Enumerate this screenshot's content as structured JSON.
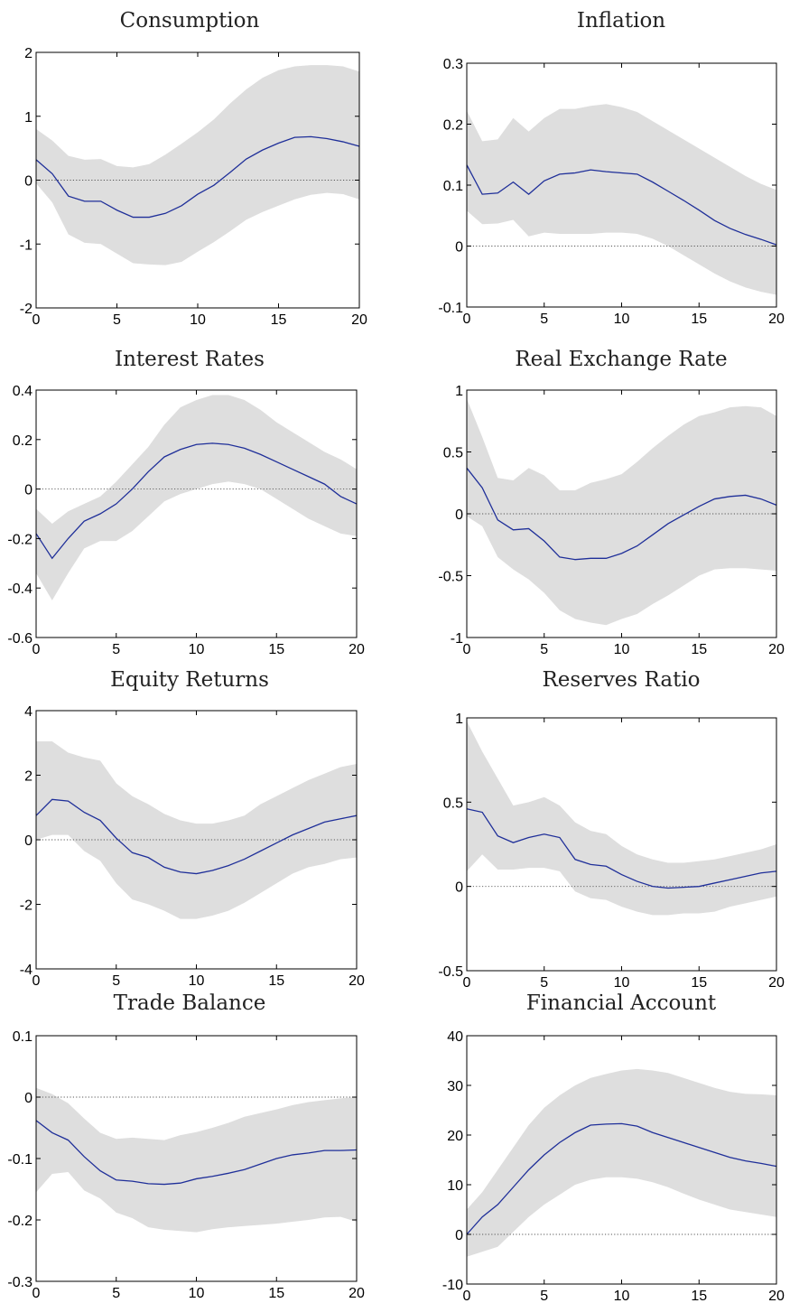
{
  "chart_data": [
    {
      "type": "area",
      "title": "Consumption",
      "xlim": [
        0,
        20
      ],
      "ylim": [
        -2,
        2
      ],
      "xticks": [
        0,
        5,
        10,
        15,
        20
      ],
      "yticks": [
        -2,
        -1,
        0,
        1,
        2
      ],
      "x": [
        0,
        1,
        2,
        3,
        4,
        5,
        6,
        7,
        8,
        9,
        10,
        11,
        12,
        13,
        14,
        15,
        16,
        17,
        18,
        19,
        20
      ],
      "series": [
        {
          "role": "median",
          "values": [
            0.32,
            0.1,
            -0.25,
            -0.33,
            -0.33,
            -0.47,
            -0.58,
            -0.58,
            -0.52,
            -0.4,
            -0.22,
            -0.08,
            0.12,
            0.33,
            0.47,
            0.58,
            0.67,
            0.68,
            0.65,
            0.6,
            0.53
          ]
        },
        {
          "role": "upper",
          "values": [
            0.8,
            0.62,
            0.38,
            0.32,
            0.33,
            0.22,
            0.2,
            0.25,
            0.4,
            0.57,
            0.75,
            0.95,
            1.2,
            1.42,
            1.6,
            1.72,
            1.78,
            1.8,
            1.8,
            1.78,
            1.7
          ]
        },
        {
          "role": "lower",
          "values": [
            -0.05,
            -0.35,
            -0.85,
            -0.98,
            -1.0,
            -1.15,
            -1.3,
            -1.32,
            -1.33,
            -1.28,
            -1.12,
            -0.97,
            -0.8,
            -0.62,
            -0.5,
            -0.4,
            -0.3,
            -0.23,
            -0.2,
            -0.22,
            -0.3
          ]
        }
      ],
      "colors": {
        "median": "#1f2f99",
        "band": "#dedede",
        "zero": "#555555"
      }
    },
    {
      "type": "area",
      "title": "Inflation",
      "xlim": [
        0,
        20
      ],
      "ylim": [
        -0.1,
        0.3
      ],
      "xticks": [
        0,
        5,
        10,
        15,
        20
      ],
      "yticks": [
        -0.1,
        0,
        0.1,
        0.2,
        0.3
      ],
      "x": [
        0,
        1,
        2,
        3,
        4,
        5,
        6,
        7,
        8,
        9,
        10,
        11,
        12,
        13,
        14,
        15,
        16,
        17,
        18,
        19,
        20
      ],
      "series": [
        {
          "role": "median",
          "values": [
            0.133,
            0.085,
            0.087,
            0.105,
            0.085,
            0.107,
            0.118,
            0.12,
            0.125,
            0.122,
            0.12,
            0.118,
            0.105,
            0.09,
            0.075,
            0.059,
            0.042,
            0.029,
            0.019,
            0.011,
            0.002
          ]
        },
        {
          "role": "upper",
          "values": [
            0.222,
            0.172,
            0.175,
            0.21,
            0.188,
            0.21,
            0.225,
            0.225,
            0.23,
            0.233,
            0.228,
            0.22,
            0.205,
            0.19,
            0.175,
            0.16,
            0.145,
            0.13,
            0.115,
            0.102,
            0.092
          ]
        },
        {
          "role": "lower",
          "values": [
            0.058,
            0.036,
            0.037,
            0.043,
            0.016,
            0.022,
            0.02,
            0.02,
            0.02,
            0.022,
            0.022,
            0.02,
            0.012,
            0.0,
            -0.015,
            -0.03,
            -0.045,
            -0.058,
            -0.068,
            -0.075,
            -0.08
          ]
        }
      ],
      "colors": {
        "median": "#1f2f99",
        "band": "#dedede",
        "zero": "#555555"
      }
    },
    {
      "type": "area",
      "title": "Interest Rates",
      "xlim": [
        0,
        20
      ],
      "ylim": [
        -0.6,
        0.4
      ],
      "xticks": [
        0,
        5,
        10,
        15,
        20
      ],
      "yticks": [
        -0.6,
        -0.4,
        -0.2,
        0,
        0.2,
        0.4
      ],
      "x": [
        0,
        1,
        2,
        3,
        4,
        5,
        6,
        7,
        8,
        9,
        10,
        11,
        12,
        13,
        14,
        15,
        16,
        17,
        18,
        19,
        20
      ],
      "series": [
        {
          "role": "median",
          "values": [
            -0.18,
            -0.28,
            -0.2,
            -0.13,
            -0.1,
            -0.06,
            0.0,
            0.07,
            0.13,
            0.16,
            0.18,
            0.185,
            0.18,
            0.165,
            0.14,
            0.11,
            0.08,
            0.05,
            0.02,
            -0.03,
            -0.06
          ]
        },
        {
          "role": "upper",
          "values": [
            -0.08,
            -0.14,
            -0.09,
            -0.06,
            -0.03,
            0.03,
            0.1,
            0.17,
            0.26,
            0.33,
            0.36,
            0.38,
            0.38,
            0.36,
            0.32,
            0.27,
            0.23,
            0.19,
            0.15,
            0.12,
            0.08
          ]
        },
        {
          "role": "lower",
          "values": [
            -0.34,
            -0.45,
            -0.34,
            -0.24,
            -0.21,
            -0.21,
            -0.17,
            -0.11,
            -0.05,
            -0.02,
            0.0,
            0.02,
            0.03,
            0.02,
            0.0,
            -0.04,
            -0.08,
            -0.12,
            -0.15,
            -0.18,
            -0.19
          ]
        }
      ],
      "colors": {
        "median": "#1f2f99",
        "band": "#dedede",
        "zero": "#555555"
      }
    },
    {
      "type": "area",
      "title": "Real Exchange Rate",
      "xlim": [
        0,
        20
      ],
      "ylim": [
        -1,
        1
      ],
      "xticks": [
        0,
        5,
        10,
        15,
        20
      ],
      "yticks": [
        -1,
        -0.5,
        0,
        0.5,
        1
      ],
      "x": [
        0,
        1,
        2,
        3,
        4,
        5,
        6,
        7,
        8,
        9,
        10,
        11,
        12,
        13,
        14,
        15,
        16,
        17,
        18,
        19,
        20
      ],
      "series": [
        {
          "role": "median",
          "values": [
            0.37,
            0.21,
            -0.05,
            -0.13,
            -0.12,
            -0.22,
            -0.35,
            -0.37,
            -0.36,
            -0.36,
            -0.32,
            -0.26,
            -0.17,
            -0.08,
            -0.01,
            0.06,
            0.12,
            0.14,
            0.15,
            0.12,
            0.07
          ]
        },
        {
          "role": "upper",
          "values": [
            0.93,
            0.62,
            0.29,
            0.27,
            0.37,
            0.31,
            0.19,
            0.19,
            0.25,
            0.28,
            0.32,
            0.42,
            0.53,
            0.63,
            0.72,
            0.79,
            0.82,
            0.86,
            0.87,
            0.86,
            0.79
          ]
        },
        {
          "role": "lower",
          "values": [
            -0.02,
            -0.1,
            -0.35,
            -0.45,
            -0.53,
            -0.64,
            -0.78,
            -0.85,
            -0.88,
            -0.9,
            -0.85,
            -0.81,
            -0.73,
            -0.66,
            -0.58,
            -0.5,
            -0.45,
            -0.44,
            -0.44,
            -0.45,
            -0.46
          ]
        }
      ],
      "colors": {
        "median": "#1f2f99",
        "band": "#dedede",
        "zero": "#555555"
      }
    },
    {
      "type": "area",
      "title": "Equity Returns",
      "xlim": [
        0,
        20
      ],
      "ylim": [
        -4,
        4
      ],
      "xticks": [
        0,
        5,
        10,
        15,
        20
      ],
      "yticks": [
        -4,
        -2,
        0,
        2,
        4
      ],
      "x": [
        0,
        1,
        2,
        3,
        4,
        5,
        6,
        7,
        8,
        9,
        10,
        11,
        12,
        13,
        14,
        15,
        16,
        17,
        18,
        19,
        20
      ],
      "series": [
        {
          "role": "median",
          "values": [
            0.75,
            1.25,
            1.2,
            0.85,
            0.6,
            0.05,
            -0.4,
            -0.55,
            -0.85,
            -1.0,
            -1.05,
            -0.95,
            -0.8,
            -0.6,
            -0.35,
            -0.1,
            0.15,
            0.35,
            0.55,
            0.65,
            0.75
          ]
        },
        {
          "role": "upper",
          "values": [
            3.05,
            3.05,
            2.7,
            2.55,
            2.45,
            1.75,
            1.35,
            1.1,
            0.8,
            0.6,
            0.5,
            0.5,
            0.6,
            0.75,
            1.1,
            1.35,
            1.6,
            1.85,
            2.05,
            2.25,
            2.35
          ]
        },
        {
          "role": "lower",
          "values": [
            0.0,
            0.15,
            0.15,
            -0.35,
            -0.65,
            -1.35,
            -1.85,
            -2.0,
            -2.2,
            -2.45,
            -2.45,
            -2.35,
            -2.2,
            -1.95,
            -1.65,
            -1.35,
            -1.05,
            -0.85,
            -0.75,
            -0.6,
            -0.55
          ]
        }
      ],
      "colors": {
        "median": "#1f2f99",
        "band": "#dedede",
        "zero": "#555555"
      }
    },
    {
      "type": "area",
      "title": "Reserves Ratio",
      "xlim": [
        0,
        20
      ],
      "ylim": [
        -0.5,
        1
      ],
      "xticks": [
        0,
        5,
        10,
        15,
        20
      ],
      "yticks": [
        -0.5,
        0,
        0.5,
        1
      ],
      "x": [
        0,
        1,
        2,
        3,
        4,
        5,
        6,
        7,
        8,
        9,
        10,
        11,
        12,
        13,
        14,
        15,
        16,
        17,
        18,
        19,
        20
      ],
      "series": [
        {
          "role": "median",
          "values": [
            0.46,
            0.44,
            0.3,
            0.26,
            0.29,
            0.31,
            0.29,
            0.16,
            0.13,
            0.12,
            0.07,
            0.03,
            0.0,
            -0.01,
            -0.005,
            0.0,
            0.02,
            0.04,
            0.06,
            0.08,
            0.09
          ]
        },
        {
          "role": "upper",
          "values": [
            0.98,
            0.8,
            0.64,
            0.48,
            0.5,
            0.53,
            0.48,
            0.38,
            0.33,
            0.31,
            0.24,
            0.19,
            0.16,
            0.14,
            0.14,
            0.15,
            0.16,
            0.18,
            0.2,
            0.22,
            0.25
          ]
        },
        {
          "role": "lower",
          "values": [
            0.09,
            0.19,
            0.1,
            0.1,
            0.11,
            0.11,
            0.09,
            -0.03,
            -0.07,
            -0.08,
            -0.12,
            -0.15,
            -0.17,
            -0.17,
            -0.16,
            -0.16,
            -0.15,
            -0.12,
            -0.1,
            -0.08,
            -0.06
          ]
        }
      ],
      "colors": {
        "median": "#1f2f99",
        "band": "#dedede",
        "zero": "#555555"
      }
    },
    {
      "type": "area",
      "title": "Trade Balance",
      "xlim": [
        0,
        20
      ],
      "ylim": [
        -0.3,
        0.1
      ],
      "xticks": [
        0,
        5,
        10,
        15,
        20
      ],
      "yticks": [
        -0.3,
        -0.2,
        -0.1,
        0,
        0.1
      ],
      "x": [
        0,
        1,
        2,
        3,
        4,
        5,
        6,
        7,
        8,
        9,
        10,
        11,
        12,
        13,
        14,
        15,
        16,
        17,
        18,
        19,
        20
      ],
      "series": [
        {
          "role": "median",
          "values": [
            -0.038,
            -0.058,
            -0.07,
            -0.097,
            -0.12,
            -0.135,
            -0.137,
            -0.141,
            -0.142,
            -0.14,
            -0.133,
            -0.129,
            -0.124,
            -0.118,
            -0.109,
            -0.1,
            -0.094,
            -0.091,
            -0.087,
            -0.087,
            -0.086
          ]
        },
        {
          "role": "upper",
          "values": [
            0.015,
            0.005,
            -0.01,
            -0.035,
            -0.058,
            -0.068,
            -0.066,
            -0.068,
            -0.07,
            -0.062,
            -0.057,
            -0.05,
            -0.042,
            -0.032,
            -0.026,
            -0.02,
            -0.013,
            -0.008,
            -0.005,
            -0.002,
            0.0
          ]
        },
        {
          "role": "lower",
          "values": [
            -0.155,
            -0.125,
            -0.122,
            -0.152,
            -0.165,
            -0.188,
            -0.197,
            -0.212,
            -0.216,
            -0.218,
            -0.22,
            -0.215,
            -0.212,
            -0.21,
            -0.208,
            -0.206,
            -0.203,
            -0.2,
            -0.196,
            -0.195,
            -0.203
          ]
        }
      ],
      "colors": {
        "median": "#1f2f99",
        "band": "#dedede",
        "zero": "#555555"
      }
    },
    {
      "type": "area",
      "title": "Financial Account",
      "xlim": [
        0,
        20
      ],
      "ylim": [
        -10,
        40
      ],
      "xticks": [
        0,
        5,
        10,
        15,
        20
      ],
      "yticks": [
        -10,
        0,
        10,
        20,
        30,
        40
      ],
      "x": [
        0,
        1,
        2,
        3,
        4,
        5,
        6,
        7,
        8,
        9,
        10,
        11,
        12,
        13,
        14,
        15,
        16,
        17,
        18,
        19,
        20
      ],
      "series": [
        {
          "role": "median",
          "values": [
            0.0,
            3.5,
            6.0,
            9.5,
            13.0,
            16.0,
            18.5,
            20.5,
            22.0,
            22.2,
            22.3,
            21.8,
            20.5,
            19.5,
            18.5,
            17.5,
            16.5,
            15.5,
            14.8,
            14.3,
            13.7
          ]
        },
        {
          "role": "upper",
          "values": [
            5.0,
            8.5,
            13.0,
            17.5,
            22.0,
            25.5,
            28.0,
            30.0,
            31.5,
            32.3,
            33.0,
            33.3,
            33.0,
            32.5,
            31.5,
            30.5,
            29.5,
            28.7,
            28.3,
            28.2,
            28.0
          ]
        },
        {
          "role": "lower",
          "values": [
            -4.5,
            -3.5,
            -2.5,
            0.5,
            3.5,
            6.0,
            8.0,
            10.0,
            11.0,
            11.5,
            11.5,
            11.2,
            10.5,
            9.5,
            8.2,
            7.0,
            6.0,
            5.0,
            4.5,
            4.0,
            3.5
          ]
        }
      ],
      "colors": {
        "median": "#1f2f99",
        "band": "#dedede",
        "zero": "#555555"
      }
    }
  ]
}
